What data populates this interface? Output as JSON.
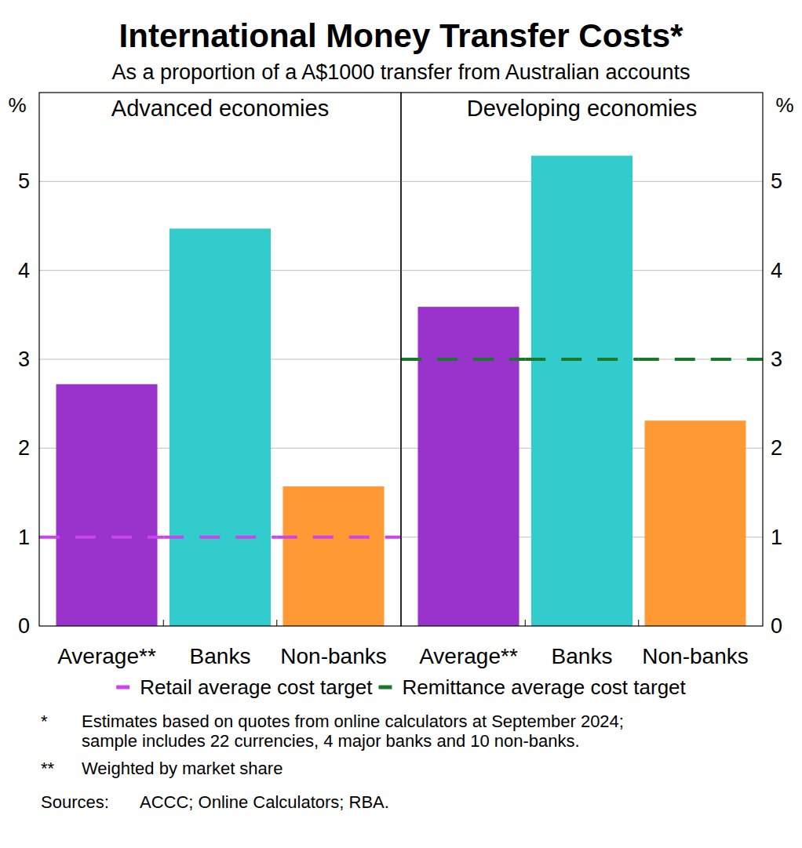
{
  "title": "International Money Transfer Costs*",
  "subtitle": "As a proportion of a A$1000 transfer from Australian accounts",
  "chart_data": [
    {
      "type": "bar",
      "title": "Advanced economies",
      "ylabel": "%",
      "categories": [
        "Average**",
        "Banks",
        "Non-banks"
      ],
      "series": [
        {
          "type": "bar",
          "colors": [
            "#9933cc",
            "#33cccc",
            "#ff9933"
          ],
          "values": [
            2.72,
            4.47,
            1.57
          ]
        },
        {
          "name": "Retail average cost target",
          "type": "line",
          "color": "#cc44ee",
          "line_style": "dashed",
          "values": [
            1,
            1,
            1
          ]
        }
      ],
      "ylim": [
        0,
        6
      ],
      "yticks": [
        0,
        1,
        2,
        3,
        4,
        5
      ],
      "grid": true
    },
    {
      "type": "bar",
      "title": "Developing economies",
      "ylabel": "%",
      "categories": [
        "Average**",
        "Banks",
        "Non-banks"
      ],
      "series": [
        {
          "type": "bar",
          "colors": [
            "#9933cc",
            "#33cccc",
            "#ff9933"
          ],
          "values": [
            3.59,
            5.29,
            2.31
          ]
        },
        {
          "name": "Remittance average cost target",
          "type": "line",
          "color": "#177a2a",
          "line_style": "dashed",
          "values": [
            3,
            3,
            3
          ]
        }
      ],
      "ylim": [
        0,
        6
      ],
      "yticks": [
        0,
        1,
        2,
        3,
        4,
        5
      ],
      "grid": true
    }
  ],
  "notes": [
    {
      "marker": "*",
      "text": "Estimates based on quotes from online calculators at September 2024; sample includes 22 currencies, 4 major banks and 10 non-banks."
    },
    {
      "marker": "**",
      "text": "Weighted by market share"
    }
  ],
  "sources": {
    "label": "Sources:",
    "text": "ACCC; Online Calculators; RBA."
  }
}
